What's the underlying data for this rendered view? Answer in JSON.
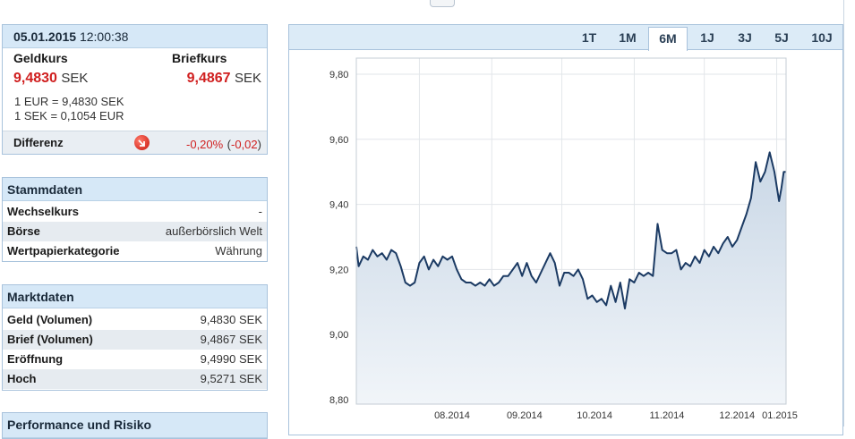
{
  "quote": {
    "date": "05.01.2015",
    "time": "12:00:38",
    "bid_label": "Geldkurs",
    "ask_label": "Briefkurs",
    "bid_value": "9,4830",
    "ask_value": "9,4867",
    "currency": "SEK",
    "rate_line1": "1 EUR = 9,4830 SEK",
    "rate_line2": "1 SEK = 0,1054 EUR",
    "diff_label": "Differenz",
    "diff_pct": "-0,20%",
    "diff_open": "(",
    "diff_abs": "-0,02",
    "diff_close": ")"
  },
  "stammdaten": {
    "title": "Stammdaten",
    "rows": [
      {
        "key": "Wechselkurs",
        "value": "-"
      },
      {
        "key": "Börse",
        "value": "außerbörslich Welt"
      },
      {
        "key": "Wertpapierkategorie",
        "value": "Währung"
      }
    ]
  },
  "marktdaten": {
    "title": "Marktdaten",
    "rows": [
      {
        "key": "Geld (Volumen)",
        "value": "9,4830 SEK"
      },
      {
        "key": "Brief (Volumen)",
        "value": "9,4867 SEK"
      },
      {
        "key": "Eröffnung",
        "value": "9,4990 SEK"
      },
      {
        "key": "Hoch",
        "value": "9,5271 SEK"
      }
    ]
  },
  "performance": {
    "title": "Performance und Risiko"
  },
  "tabs": [
    "1T",
    "1M",
    "6M",
    "1J",
    "3J",
    "5J",
    "10J"
  ],
  "active_tab": "6M",
  "colors": {
    "negative": "#d01f1f",
    "line": "#1b3a63",
    "area": "#dce6f0",
    "header": "#d6e8f7"
  },
  "chart_data": {
    "type": "area",
    "y_ticks": [
      "9,80",
      "9,60",
      "9,40",
      "9,20",
      "9,00",
      "8,80"
    ],
    "x_ticks": [
      "08.2014",
      "09.2014",
      "10.2014",
      "11.2014",
      "12.2014",
      "01.2015"
    ],
    "ylim": [
      8.8,
      9.8
    ],
    "grid": true,
    "series": [
      {
        "values": [
          [
            "2014-07-05",
            9.27
          ],
          [
            "2014-07-06",
            9.21
          ],
          [
            "2014-07-08",
            9.24
          ],
          [
            "2014-07-10",
            9.23
          ],
          [
            "2014-07-12",
            9.26
          ],
          [
            "2014-07-14",
            9.24
          ],
          [
            "2014-07-16",
            9.25
          ],
          [
            "2014-07-18",
            9.23
          ],
          [
            "2014-07-20",
            9.26
          ],
          [
            "2014-07-22",
            9.25
          ],
          [
            "2014-07-24",
            9.21
          ],
          [
            "2014-07-26",
            9.16
          ],
          [
            "2014-07-28",
            9.15
          ],
          [
            "2014-07-30",
            9.16
          ],
          [
            "2014-08-01",
            9.22
          ],
          [
            "2014-08-03",
            9.24
          ],
          [
            "2014-08-05",
            9.2
          ],
          [
            "2014-08-07",
            9.23
          ],
          [
            "2014-08-09",
            9.21
          ],
          [
            "2014-08-11",
            9.24
          ],
          [
            "2014-08-13",
            9.23
          ],
          [
            "2014-08-15",
            9.24
          ],
          [
            "2014-08-17",
            9.2
          ],
          [
            "2014-08-19",
            9.17
          ],
          [
            "2014-08-21",
            9.16
          ],
          [
            "2014-08-23",
            9.16
          ],
          [
            "2014-08-25",
            9.15
          ],
          [
            "2014-08-27",
            9.16
          ],
          [
            "2014-08-29",
            9.15
          ],
          [
            "2014-08-31",
            9.17
          ],
          [
            "2014-09-02",
            9.15
          ],
          [
            "2014-09-04",
            9.16
          ],
          [
            "2014-09-06",
            9.18
          ],
          [
            "2014-09-08",
            9.18
          ],
          [
            "2014-09-10",
            9.2
          ],
          [
            "2014-09-12",
            9.22
          ],
          [
            "2014-09-14",
            9.18
          ],
          [
            "2014-09-16",
            9.22
          ],
          [
            "2014-09-18",
            9.18
          ],
          [
            "2014-09-20",
            9.16
          ],
          [
            "2014-09-22",
            9.19
          ],
          [
            "2014-09-24",
            9.22
          ],
          [
            "2014-09-26",
            9.25
          ],
          [
            "2014-09-28",
            9.22
          ],
          [
            "2014-09-30",
            9.15
          ],
          [
            "2014-10-02",
            9.19
          ],
          [
            "2014-10-04",
            9.19
          ],
          [
            "2014-10-06",
            9.18
          ],
          [
            "2014-10-08",
            9.2
          ],
          [
            "2014-10-10",
            9.17
          ],
          [
            "2014-10-12",
            9.11
          ],
          [
            "2014-10-14",
            9.12
          ],
          [
            "2014-10-16",
            9.1
          ],
          [
            "2014-10-18",
            9.11
          ],
          [
            "2014-10-20",
            9.09
          ],
          [
            "2014-10-22",
            9.15
          ],
          [
            "2014-10-24",
            9.1
          ],
          [
            "2014-10-26",
            9.16
          ],
          [
            "2014-10-28",
            9.08
          ],
          [
            "2014-10-30",
            9.17
          ],
          [
            "2014-11-01",
            9.16
          ],
          [
            "2014-11-03",
            9.19
          ],
          [
            "2014-11-05",
            9.18
          ],
          [
            "2014-11-07",
            9.19
          ],
          [
            "2014-11-09",
            9.18
          ],
          [
            "2014-11-11",
            9.34
          ],
          [
            "2014-11-13",
            9.26
          ],
          [
            "2014-11-15",
            9.25
          ],
          [
            "2014-11-17",
            9.25
          ],
          [
            "2014-11-19",
            9.26
          ],
          [
            "2014-11-21",
            9.2
          ],
          [
            "2014-11-23",
            9.22
          ],
          [
            "2014-11-25",
            9.21
          ],
          [
            "2014-11-27",
            9.24
          ],
          [
            "2014-11-29",
            9.22
          ],
          [
            "2014-12-01",
            9.26
          ],
          [
            "2014-12-03",
            9.24
          ],
          [
            "2014-12-05",
            9.27
          ],
          [
            "2014-12-07",
            9.25
          ],
          [
            "2014-12-09",
            9.28
          ],
          [
            "2014-12-11",
            9.3
          ],
          [
            "2014-12-13",
            9.27
          ],
          [
            "2014-12-15",
            9.29
          ],
          [
            "2014-12-17",
            9.33
          ],
          [
            "2014-12-19",
            9.37
          ],
          [
            "2014-12-21",
            9.42
          ],
          [
            "2014-12-23",
            9.53
          ],
          [
            "2014-12-25",
            9.47
          ],
          [
            "2014-12-27",
            9.5
          ],
          [
            "2014-12-29",
            9.56
          ],
          [
            "2014-12-31",
            9.5
          ],
          [
            "2015-01-02",
            9.41
          ],
          [
            "2015-01-03",
            9.45
          ],
          [
            "2015-01-04",
            9.5
          ],
          [
            "2015-01-05",
            9.5
          ]
        ]
      }
    ]
  }
}
